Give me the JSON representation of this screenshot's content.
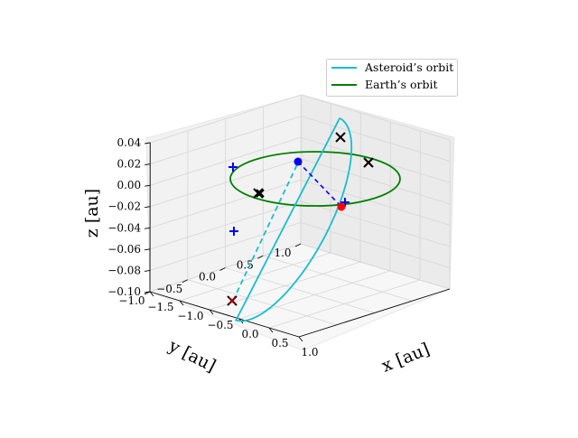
{
  "chart_data": {
    "type": "line",
    "projection": "3d",
    "title": "",
    "xlabel": "x [au]",
    "ylabel": "y [au]",
    "zlabel": "z [au]",
    "xlim": [
      -1.5,
      1.0
    ],
    "ylim": [
      -1.0,
      1.0
    ],
    "zlim": [
      -0.1,
      0.04
    ],
    "x_ticks": [
      "−1.5",
      "−1.0",
      "−0.5",
      "0.0",
      "0.5",
      "1.0"
    ],
    "y_ticks": [
      "−1.0",
      "−0.5",
      "0.0",
      "0.5",
      "1.0"
    ],
    "z_ticks": [
      "−0.10",
      "−0.08",
      "−0.06",
      "−0.04",
      "−0.02",
      "0.00",
      "0.02",
      "0.04"
    ],
    "grid": true,
    "legend_position": "top-right",
    "series": [
      {
        "name": "Asteroid’s orbit",
        "color": "#17becf",
        "style": "solid with dashed hidden segment"
      },
      {
        "name": "Earth’s orbit",
        "color": "#008000",
        "style": "solid"
      }
    ],
    "markers": {
      "cross_black": "x",
      "cross_red": "x",
      "plus_blue": "+",
      "point_blue": "o",
      "point_red": "o"
    },
    "colors": {
      "asteroid": "#17becf",
      "earth": "#008000",
      "blue": "#0000ff",
      "red": "#ff0000",
      "black": "#000000",
      "dark_red": "#8b0000"
    }
  }
}
